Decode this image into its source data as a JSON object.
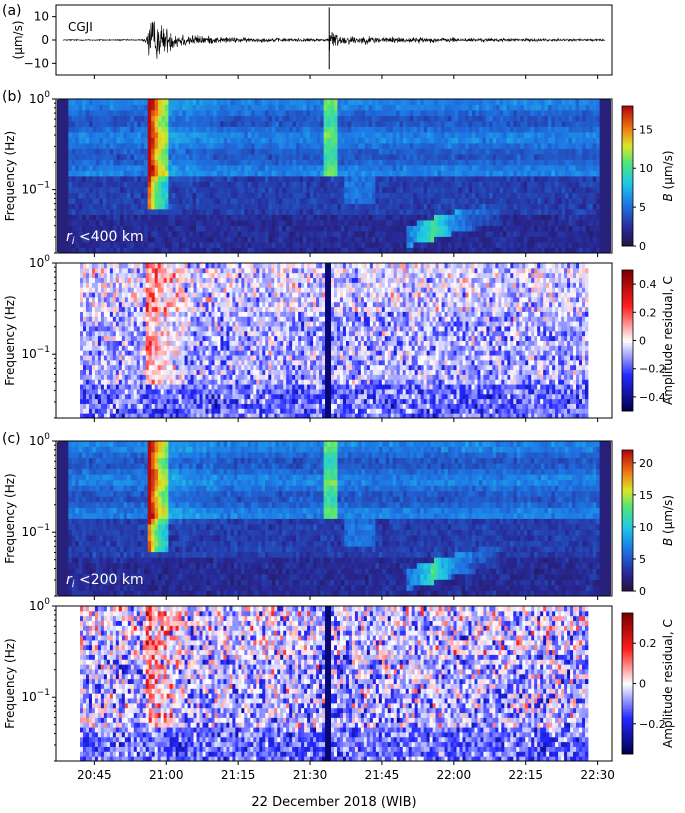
{
  "figure": {
    "xaxis": {
      "label": "22 December 2018 (WIB)",
      "range_min": [
        37,
        153
      ],
      "ticks": [
        {
          "label": "20:45",
          "min": 45
        },
        {
          "label": "21:00",
          "min": 60
        },
        {
          "label": "21:15",
          "min": 75
        },
        {
          "label": "21:30",
          "min": 90
        },
        {
          "label": "21:45",
          "min": 105
        },
        {
          "label": "22:00",
          "min": 120
        },
        {
          "label": "22:15",
          "min": 135
        },
        {
          "label": "22:30",
          "min": 150
        }
      ]
    }
  },
  "chart_data": [
    {
      "type": "line",
      "panel_label": "(a)",
      "station_label": "CGJI",
      "ylabel": "(μm/s)",
      "ylim": [
        -15,
        15
      ],
      "yticks": [
        "10",
        "0",
        "−10"
      ],
      "yticks_values": [
        10,
        0,
        -10
      ],
      "events": [
        {
          "time": "20:56",
          "peak": 12.5
        },
        {
          "time": "21:34",
          "peak": 14.0
        }
      ]
    },
    {
      "type": "heatmap",
      "panel_label": "(b)",
      "ylabel": "Frequency (Hz)",
      "yscale": "log",
      "ylim": [
        0.02,
        1
      ],
      "yticks": [
        {
          "base": "10",
          "exp": "0",
          "value": 1
        },
        {
          "base": "10",
          "exp": "−1",
          "value": 0.1
        }
      ],
      "annotation_sym": "r",
      "annotation_sub": "i",
      "annotation_text": " <400 km",
      "colorbar": {
        "label": "B (μm/s)",
        "label_sym": "B",
        "label_unit": " (μm/s)",
        "range": [
          0,
          18
        ],
        "ticks": [
          "0",
          "5",
          "10",
          "15"
        ],
        "tick_values": [
          0,
          5,
          10,
          15
        ],
        "colormap": "jet"
      }
    },
    {
      "type": "heatmap",
      "panel_label": "",
      "ylabel": "Frequency (Hz)",
      "yscale": "log",
      "ylim": [
        0.02,
        1
      ],
      "yticks": [
        {
          "base": "10",
          "exp": "0",
          "value": 1
        },
        {
          "base": "10",
          "exp": "−1",
          "value": 0.1
        }
      ],
      "colorbar": {
        "label": "Amplitude residual, C",
        "range": [
          -0.5,
          0.5
        ],
        "ticks": [
          "0.4",
          "0.2",
          "0",
          "−0.2",
          "−0.4"
        ],
        "tick_values": [
          0.4,
          0.2,
          0,
          -0.2,
          -0.4
        ],
        "colormap": "seismic"
      }
    },
    {
      "type": "heatmap",
      "panel_label": "(c)",
      "ylabel": "Frequency (Hz)",
      "yscale": "log",
      "ylim": [
        0.02,
        1
      ],
      "yticks": [
        {
          "base": "10",
          "exp": "0",
          "value": 1
        },
        {
          "base": "10",
          "exp": "−1",
          "value": 0.1
        }
      ],
      "annotation_sym": "r",
      "annotation_sub": "i",
      "annotation_text": " <200 km",
      "colorbar": {
        "label": "B (μm/s)",
        "label_sym": "B",
        "label_unit": " (μm/s)",
        "range": [
          0,
          22
        ],
        "ticks": [
          "0",
          "5",
          "10",
          "15",
          "20"
        ],
        "tick_values": [
          0,
          5,
          10,
          15,
          20
        ],
        "colormap": "jet"
      }
    },
    {
      "type": "heatmap",
      "panel_label": "",
      "ylabel": "Frequency (Hz)",
      "yscale": "log",
      "ylim": [
        0.02,
        1
      ],
      "yticks": [
        {
          "base": "10",
          "exp": "0",
          "value": 1
        },
        {
          "base": "10",
          "exp": "−1",
          "value": 0.1
        }
      ],
      "colorbar": {
        "label": "Amplitude residual, C",
        "range": [
          -0.35,
          0.35
        ],
        "ticks": [
          "0.2",
          "0",
          "−0.2"
        ],
        "tick_values": [
          0.2,
          0,
          -0.2
        ],
        "colormap": "seismic"
      }
    }
  ]
}
